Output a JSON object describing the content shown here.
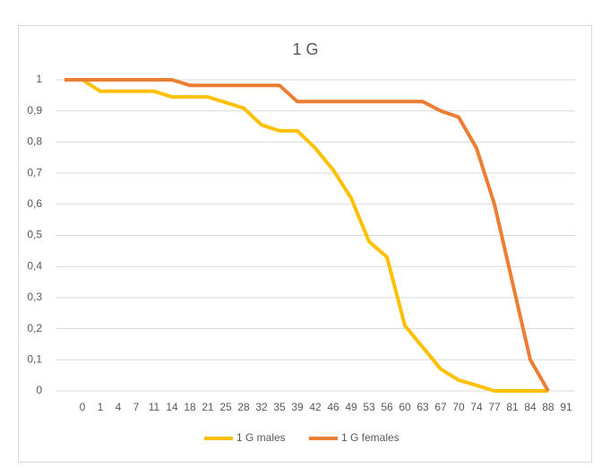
{
  "chart_data": {
    "type": "line",
    "title": "1 G",
    "categories": [
      null,
      "0",
      "1",
      "4",
      "7",
      "11",
      "14",
      "18",
      "21",
      "25",
      "28",
      "32",
      "35",
      "39",
      "42",
      "46",
      "49",
      "53",
      "56",
      "60",
      "63",
      "67",
      "70",
      "74",
      "77",
      "81",
      "84",
      "88",
      "91"
    ],
    "series": [
      {
        "name": "1 G males",
        "color": "#ffc000",
        "values": [
          1,
          1,
          0.963,
          0.963,
          0.963,
          0.963,
          0.945,
          0.945,
          0.945,
          0.927,
          0.909,
          0.855,
          0.836,
          0.836,
          0.78,
          0.71,
          0.62,
          0.48,
          0.43,
          0.21,
          0.14,
          0.07,
          0.035,
          0.018,
          0,
          0,
          0,
          0,
          null
        ]
      },
      {
        "name": "1 G females",
        "color": "#ed7d31",
        "values": [
          1,
          1,
          1,
          1,
          1,
          1,
          1,
          0.982,
          0.982,
          0.982,
          0.982,
          0.982,
          0.982,
          0.93,
          0.93,
          0.93,
          0.93,
          0.93,
          0.93,
          0.93,
          0.93,
          0.9,
          0.88,
          0.78,
          0.6,
          0.35,
          0.1,
          0,
          null
        ]
      }
    ],
    "ylim": [
      0,
      1
    ],
    "yticks": [
      0,
      {
        "value": 0.1,
        "label": "0,1"
      },
      {
        "value": 0.2,
        "label": "0,2"
      },
      {
        "value": 0.3,
        "label": "0,3"
      },
      {
        "value": 0.4,
        "label": "0,4"
      },
      {
        "value": 0.5,
        "label": "0,5"
      },
      {
        "value": 0.6,
        "label": "0,6"
      },
      {
        "value": 0.7,
        "label": "0,7"
      },
      {
        "value": 0.8,
        "label": "0,8"
      },
      {
        "value": 0.9,
        "label": "0,9"
      },
      1
    ],
    "grid": true,
    "legend": "bottom"
  }
}
